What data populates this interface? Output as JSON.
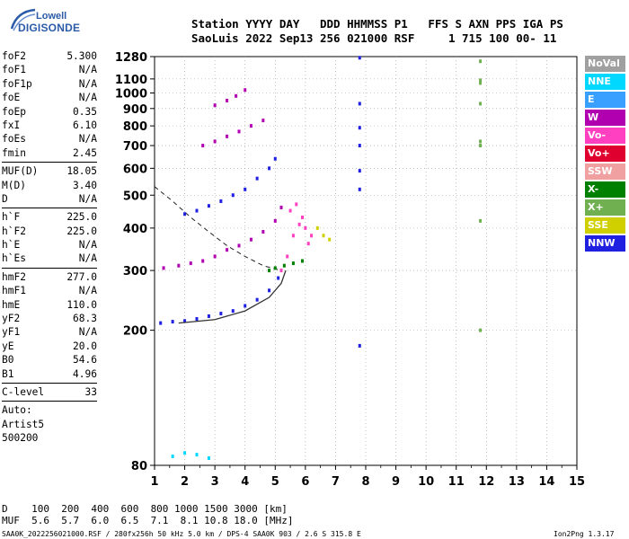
{
  "logo": {
    "top": "Lowell",
    "bottom": "DIGISONDE"
  },
  "header": {
    "row1": "Station YYYY DAY   DDD HHMMSS P1   FFS S AXN PPS IGA PS",
    "row2": "SaoLuis 2022 Sep13 256 021000 RSF     1 715 100 00- 11"
  },
  "params": [
    {
      "label": "foF2",
      "value": "5.300"
    },
    {
      "label": "foF1",
      "value": "N/A"
    },
    {
      "label": "foF1p",
      "value": "N/A"
    },
    {
      "label": "foE",
      "value": "N/A"
    },
    {
      "label": "foEp",
      "value": "0.35"
    },
    {
      "label": "fxI",
      "value": "6.10"
    },
    {
      "label": "foEs",
      "value": "N/A"
    },
    {
      "label": "fmin",
      "value": "2.45"
    },
    {
      "sep": true
    },
    {
      "label": "MUF(D)",
      "value": "18.05"
    },
    {
      "label": "M(D)",
      "value": "3.40"
    },
    {
      "label": "D",
      "value": "N/A"
    },
    {
      "sep": true
    },
    {
      "label": "h`F",
      "value": "225.0"
    },
    {
      "label": "h`F2",
      "value": "225.0"
    },
    {
      "label": "h`E",
      "value": "N/A"
    },
    {
      "label": "h`Es",
      "value": "N/A"
    },
    {
      "sep": true
    },
    {
      "label": "hmF2",
      "value": "277.0"
    },
    {
      "label": "hmF1",
      "value": "N/A"
    },
    {
      "label": "hmE",
      "value": "110.0"
    },
    {
      "label": "yF2",
      "value": "68.3"
    },
    {
      "label": "yF1",
      "value": "N/A"
    },
    {
      "label": "yE",
      "value": "20.0"
    },
    {
      "label": "B0",
      "value": "54.6"
    },
    {
      "label": "B1",
      "value": "4.96"
    },
    {
      "sep": true
    },
    {
      "label": "C-level",
      "value": "33"
    },
    {
      "sep": true
    },
    {
      "label": "Auto:",
      "value": ""
    },
    {
      "label": "Artist5",
      "value": ""
    },
    {
      "label": "500200",
      "value": ""
    }
  ],
  "legend": [
    {
      "label": "NoVal",
      "color": "#a0a0a0"
    },
    {
      "label": "NNE",
      "color": "#00d8ff"
    },
    {
      "label": "E",
      "color": "#3aa0ff"
    },
    {
      "label": "W",
      "color": "#b000b0"
    },
    {
      "label": "Vo-",
      "color": "#ff40c0"
    },
    {
      "label": "Vo+",
      "color": "#e00030"
    },
    {
      "label": "SSW",
      "color": "#f0a0a0"
    },
    {
      "label": "X-",
      "color": "#008000"
    },
    {
      "label": "X+",
      "color": "#70b050"
    },
    {
      "label": "SSE",
      "color": "#d0d000"
    },
    {
      "label": "NNW",
      "color": "#2020e0"
    }
  ],
  "footer": {
    "d_row": "D    100  200  400  600  800 1000 1500 3000 [km]",
    "muf_row": "MUF  5.6  5.7  6.0  6.5  7.1  8.1 10.8 18.0 [MHz]",
    "file_row": "SAA0K_2022256021000.RSF / 280fx256h 50 kHz 5.0 km / DPS-4 SAA0K 903 / 2.6 S 315.8 E",
    "version": "Ion2Png 1.3.17"
  },
  "chart_data": {
    "type": "scatter",
    "xlim": [
      1,
      15
    ],
    "ylim": [
      80,
      1280
    ],
    "x_ticks": [
      1,
      2,
      3,
      4,
      5,
      6,
      7,
      8,
      9,
      10,
      11,
      12,
      13,
      14,
      15
    ],
    "y_ticks": [
      80,
      200,
      300,
      400,
      500,
      600,
      700,
      800,
      900,
      1000,
      1100,
      1280
    ],
    "y_scale": "log",
    "series": [
      {
        "color": "#2020e0",
        "points": [
          [
            1.2,
            210
          ],
          [
            1.6,
            212
          ],
          [
            2.0,
            213
          ],
          [
            2.4,
            216
          ],
          [
            2.8,
            220
          ],
          [
            3.2,
            224
          ],
          [
            3.6,
            228
          ],
          [
            4.0,
            236
          ],
          [
            4.4,
            246
          ],
          [
            4.8,
            262
          ],
          [
            5.1,
            285
          ]
        ]
      },
      {
        "color": "#ff40c0",
        "points": [
          [
            5.2,
            300
          ],
          [
            5.4,
            330
          ],
          [
            5.6,
            380
          ],
          [
            5.8,
            410
          ],
          [
            6.0,
            400
          ],
          [
            6.2,
            380
          ],
          [
            5.5,
            450
          ],
          [
            5.7,
            470
          ],
          [
            5.9,
            430
          ],
          [
            6.1,
            360
          ]
        ]
      },
      {
        "color": "#b000b0",
        "points": [
          [
            1.3,
            305
          ],
          [
            1.8,
            310
          ],
          [
            2.2,
            315
          ],
          [
            2.6,
            320
          ],
          [
            3.0,
            330
          ],
          [
            3.4,
            345
          ],
          [
            3.8,
            355
          ],
          [
            4.2,
            370
          ],
          [
            4.6,
            390
          ],
          [
            5.0,
            420
          ],
          [
            5.2,
            460
          ]
        ]
      },
      {
        "color": "#008000",
        "points": [
          [
            4.8,
            300
          ],
          [
            5.0,
            305
          ],
          [
            5.3,
            310
          ],
          [
            5.6,
            315
          ],
          [
            5.9,
            320
          ]
        ]
      },
      {
        "color": "#2020e0",
        "points": [
          [
            2.0,
            440
          ],
          [
            2.4,
            450
          ],
          [
            2.8,
            465
          ],
          [
            3.2,
            480
          ],
          [
            3.6,
            500
          ],
          [
            4.0,
            520
          ],
          [
            4.4,
            560
          ],
          [
            4.8,
            600
          ],
          [
            5.0,
            640
          ]
        ]
      },
      {
        "color": "#b000b0",
        "points": [
          [
            2.6,
            700
          ],
          [
            3.0,
            720
          ],
          [
            3.4,
            745
          ],
          [
            3.8,
            770
          ],
          [
            4.2,
            800
          ],
          [
            4.6,
            830
          ]
        ]
      },
      {
        "color": "#b000b0",
        "points": [
          [
            3.0,
            920
          ],
          [
            3.4,
            950
          ],
          [
            3.7,
            980
          ],
          [
            4.0,
            1020
          ]
        ]
      },
      {
        "color": "#2020e0",
        "points": [
          [
            7.8,
            1270
          ],
          [
            7.8,
            930
          ],
          [
            7.8,
            790
          ],
          [
            7.8,
            700
          ],
          [
            7.8,
            590
          ],
          [
            7.8,
            520
          ],
          [
            7.8,
            180
          ]
        ]
      },
      {
        "color": "#70b050",
        "points": [
          [
            11.8,
            1240
          ],
          [
            11.8,
            1090
          ],
          [
            11.8,
            1070
          ],
          [
            11.8,
            930
          ],
          [
            11.8,
            720
          ],
          [
            11.8,
            700
          ],
          [
            11.8,
            420
          ],
          [
            11.8,
            200
          ]
        ]
      },
      {
        "color": "#00d8ff",
        "points": [
          [
            1.6,
            85
          ],
          [
            2.0,
            87
          ],
          [
            2.4,
            86
          ],
          [
            2.8,
            84
          ]
        ]
      },
      {
        "color": "#d0d000",
        "points": [
          [
            6.4,
            400
          ],
          [
            6.6,
            380
          ],
          [
            6.8,
            370
          ]
        ]
      }
    ],
    "trace_curve": [
      [
        1.8,
        210
      ],
      [
        3.0,
        215
      ],
      [
        4.0,
        228
      ],
      [
        4.8,
        250
      ],
      [
        5.2,
        275
      ],
      [
        5.35,
        300
      ]
    ],
    "dashed_curve": [
      [
        1.0,
        530
      ],
      [
        1.6,
        480
      ],
      [
        2.2,
        430
      ],
      [
        2.8,
        390
      ],
      [
        3.4,
        355
      ],
      [
        4.0,
        330
      ],
      [
        4.6,
        310
      ],
      [
        5.2,
        300
      ]
    ]
  }
}
